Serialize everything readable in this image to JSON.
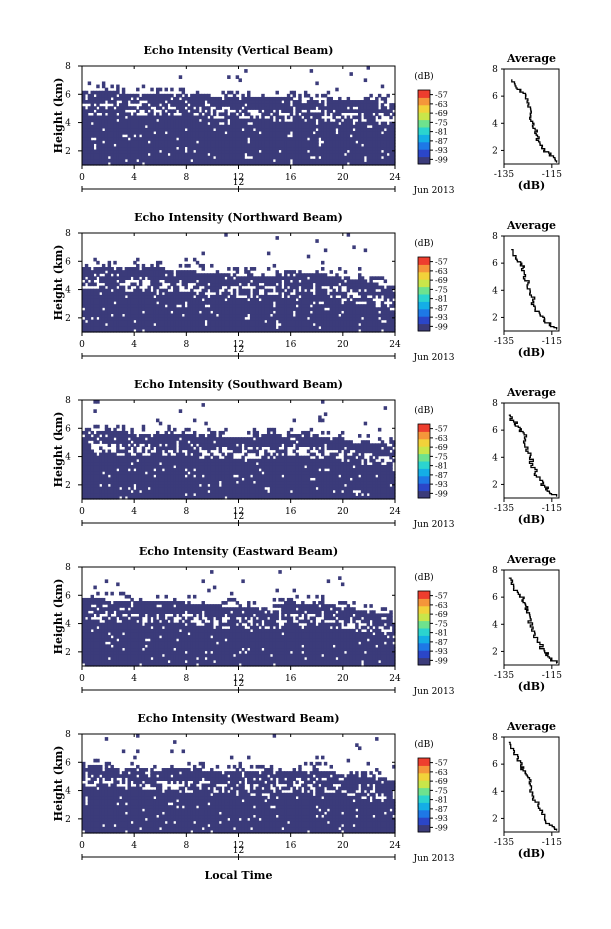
{
  "figure": {
    "xlabel": "Local Time",
    "date_label": "Jun 2013",
    "noon_label": "12",
    "colorbar_unit": "(dB)",
    "avg_title": "Average",
    "avg_xlabel": "(dB)"
  },
  "colors": {
    "colorbar": [
      "#3b3b7a",
      "#2b46c8",
      "#1e78e6",
      "#14aee6",
      "#2bd4cf",
      "#6ee28e",
      "#c9e64a",
      "#f2d23a",
      "#f5963a",
      "#ee3e2e"
    ],
    "field": "#3b3b7a"
  },
  "chart_data": [
    {
      "type": "heatmap",
      "title": "Echo Intensity (Vertical Beam)",
      "ylabel": "Height (km)",
      "x": [
        0,
        4,
        8,
        12,
        16,
        20,
        24
      ],
      "xlim": [
        0,
        24
      ],
      "ylim": [
        1,
        8
      ],
      "yticks": [
        2,
        4,
        6,
        8
      ],
      "colorbar_ticks": [
        -57,
        -63,
        -69,
        -75,
        -81,
        -87,
        -93,
        -99
      ],
      "echo_top_km": [
        6.2,
        6.2,
        6.1,
        6.1,
        6.0,
        5.9,
        5.8,
        5.8,
        5.7,
        5.7,
        5.6,
        5.5,
        5.4
      ],
      "average_profile": {
        "xlim": [
          -135,
          -112
        ],
        "xticks": [
          -135,
          -115
        ],
        "yticks": [
          2,
          4,
          6,
          8
        ],
        "x": [
          -132,
          -130,
          -127,
          -126,
          -125,
          -124,
          -123,
          -122,
          -121,
          -120,
          -118,
          -116,
          -113
        ],
        "y": [
          7.2,
          6.6,
          6.2,
          5.8,
          5.2,
          4.6,
          4.0,
          3.5,
          3.0,
          2.5,
          2.0,
          1.6,
          1.1
        ]
      }
    },
    {
      "type": "heatmap",
      "title": "Echo Intensity (Northward Beam)",
      "ylabel": "Height (km)",
      "x": [
        0,
        4,
        8,
        12,
        16,
        20,
        24
      ],
      "xlim": [
        0,
        24
      ],
      "ylim": [
        1,
        8
      ],
      "yticks": [
        2,
        4,
        6,
        8
      ],
      "colorbar_ticks": [
        -57,
        -63,
        -69,
        -75,
        -81,
        -87,
        -93,
        -99
      ],
      "echo_top_km": [
        5.7,
        5.6,
        5.5,
        5.5,
        5.4,
        5.2,
        5.0,
        5.0,
        5.1,
        5.2,
        4.9,
        4.5,
        4.2
      ],
      "average_profile": {
        "xlim": [
          -135,
          -112
        ],
        "xticks": [
          -135,
          -115
        ],
        "yticks": [
          2,
          4,
          6,
          8
        ],
        "x": [
          -132,
          -130,
          -128,
          -127,
          -126,
          -125,
          -124,
          -123,
          -122,
          -120,
          -118,
          -116,
          -113
        ],
        "y": [
          7.0,
          6.4,
          6.0,
          5.6,
          5.0,
          4.4,
          3.8,
          3.2,
          2.7,
          2.2,
          1.8,
          1.4,
          1.1
        ]
      }
    },
    {
      "type": "heatmap",
      "title": "Echo Intensity (Southward Beam)",
      "ylabel": "Height (km)",
      "x": [
        0,
        4,
        8,
        12,
        16,
        20,
        24
      ],
      "xlim": [
        0,
        24
      ],
      "ylim": [
        1,
        8
      ],
      "yticks": [
        2,
        4,
        6,
        8
      ],
      "colorbar_ticks": [
        -57,
        -63,
        -69,
        -75,
        -81,
        -87,
        -93,
        -99
      ],
      "echo_top_km": [
        5.9,
        5.8,
        5.7,
        5.7,
        5.6,
        5.5,
        5.4,
        5.5,
        5.6,
        5.5,
        5.3,
        5.0,
        4.8
      ],
      "average_profile": {
        "xlim": [
          -135,
          -112
        ],
        "xticks": [
          -135,
          -115
        ],
        "yticks": [
          2,
          4,
          6,
          8
        ],
        "x": [
          -133,
          -131,
          -129,
          -127,
          -126,
          -125,
          -124,
          -123,
          -122,
          -120,
          -118,
          -116,
          -113
        ],
        "y": [
          7.1,
          6.6,
          6.2,
          5.8,
          5.2,
          4.6,
          4.0,
          3.4,
          2.8,
          2.3,
          1.8,
          1.4,
          1.1
        ]
      }
    },
    {
      "type": "heatmap",
      "title": "Echo Intensity (Eastward Beam)",
      "ylabel": "Height (km)",
      "x": [
        0,
        4,
        8,
        12,
        16,
        20,
        24
      ],
      "xlim": [
        0,
        24
      ],
      "ylim": [
        1,
        8
      ],
      "yticks": [
        2,
        4,
        6,
        8
      ],
      "colorbar_ticks": [
        -57,
        -63,
        -69,
        -75,
        -81,
        -87,
        -93,
        -99
      ],
      "echo_top_km": [
        5.8,
        5.7,
        5.6,
        5.6,
        5.5,
        5.3,
        5.2,
        5.2,
        5.4,
        5.5,
        5.2,
        4.9,
        4.6
      ],
      "average_profile": {
        "xlim": [
          -135,
          -112
        ],
        "xticks": [
          -135,
          -115
        ],
        "yticks": [
          2,
          4,
          6,
          8
        ],
        "x": [
          -133,
          -131,
          -129,
          -127,
          -126,
          -125,
          -124,
          -124,
          -122,
          -120,
          -118,
          -116,
          -113
        ],
        "y": [
          7.4,
          6.8,
          6.2,
          5.8,
          5.4,
          5.0,
          4.4,
          3.8,
          3.2,
          2.5,
          1.9,
          1.5,
          1.1
        ]
      }
    },
    {
      "type": "heatmap",
      "title": "Echo Intensity (Westward Beam)",
      "ylabel": "Height (km)",
      "x": [
        0,
        4,
        8,
        12,
        16,
        20,
        24
      ],
      "xlim": [
        0,
        24
      ],
      "ylim": [
        1,
        8
      ],
      "yticks": [
        2,
        4,
        6,
        8
      ],
      "colorbar_ticks": [
        -57,
        -63,
        -69,
        -75,
        -81,
        -87,
        -93,
        -99
      ],
      "echo_top_km": [
        5.8,
        5.7,
        5.6,
        5.6,
        5.5,
        5.4,
        5.3,
        5.3,
        5.4,
        5.5,
        5.2,
        4.9,
        4.7
      ],
      "average_profile": {
        "xlim": [
          -135,
          -112
        ],
        "xticks": [
          -135,
          -115
        ],
        "yticks": [
          2,
          4,
          6,
          8
        ],
        "x": [
          -133,
          -131,
          -129,
          -128,
          -126,
          -125,
          -124,
          -123,
          -122,
          -120,
          -118,
          -116,
          -113
        ],
        "y": [
          7.6,
          7.0,
          6.4,
          5.8,
          5.4,
          5.0,
          4.4,
          3.8,
          3.2,
          2.6,
          2.0,
          1.5,
          1.1
        ]
      }
    }
  ]
}
